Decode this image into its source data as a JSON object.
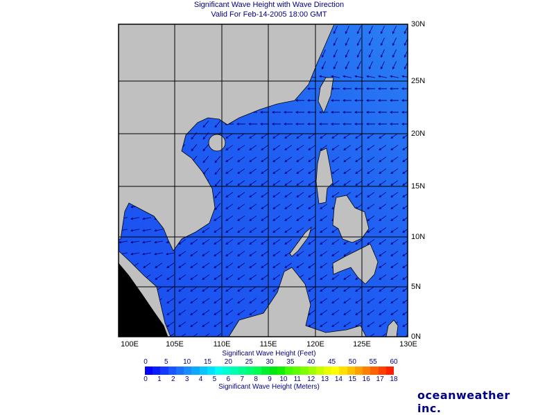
{
  "header": {
    "title": "Significant Wave Height with Wave Direction",
    "subtitle": "Valid For Feb-14-2005 18:00 GMT"
  },
  "map": {
    "region": "South China Sea",
    "lon_labels": [
      "100E",
      "105E",
      "110E",
      "115E",
      "120E",
      "125E",
      "130E"
    ],
    "lat_labels": [
      "30N",
      "25N",
      "20N",
      "15N",
      "10N",
      "5N",
      "0N"
    ],
    "land_color": "#c0c0c0",
    "water_color": "#1e55f2",
    "arrow_color": "#000080",
    "grid_color": "#000000"
  },
  "colorbar": {
    "feet_title": "Significant Wave Height (Feet)",
    "meters_title": "Significant Wave Height (Meters)",
    "feet_ticks": [
      "0",
      "5",
      "10",
      "15",
      "20",
      "25",
      "30",
      "35",
      "40",
      "45",
      "50",
      "55",
      "60"
    ],
    "meter_ticks": [
      "0",
      "1",
      "2",
      "3",
      "4",
      "5",
      "6",
      "7",
      "8",
      "9",
      "10",
      "11",
      "12",
      "13",
      "14",
      "15",
      "16",
      "17",
      "18"
    ],
    "colors": [
      "#0000ff",
      "#0a1cff",
      "#1438ff",
      "#1a55ff",
      "#1c70ff",
      "#1a8cff",
      "#10a8ff",
      "#08c4ff",
      "#00e0ff",
      "#00fff0",
      "#00ffd0",
      "#00ffb0",
      "#00ff90",
      "#00ff70",
      "#00ff50",
      "#00f030",
      "#00e810",
      "#10f000",
      "#40ff00",
      "#60ff00",
      "#80ff00",
      "#a0ff00",
      "#c8ff00",
      "#e8ff00",
      "#ffff00",
      "#ffe000",
      "#ffc000",
      "#ffa000",
      "#ff8000",
      "#ff6000",
      "#ff4000",
      "#ff2000"
    ]
  },
  "brand": {
    "logo": "oceanweather inc."
  }
}
